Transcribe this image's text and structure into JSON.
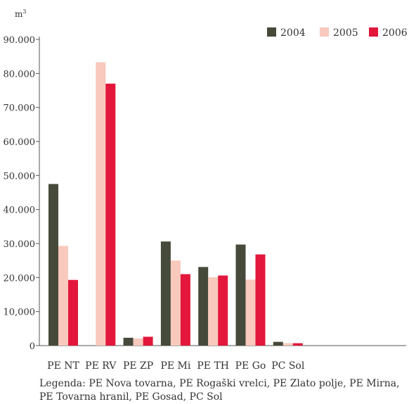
{
  "chart_data": {
    "type": "bar",
    "ylabel": "m",
    "ylabel_superscript": "3",
    "categories": [
      "PE NT",
      "PE RV",
      "PE ZP",
      "PE Mi",
      "PE TH",
      "PE Go",
      "PC Sol"
    ],
    "series": [
      {
        "name": "2004",
        "color": "#454a3a",
        "values": [
          47500,
          0,
          2300,
          30600,
          23100,
          29700,
          1100
        ]
      },
      {
        "name": "2005",
        "color": "#f8c9bc",
        "values": [
          29300,
          83300,
          2100,
          25000,
          20100,
          19400,
          700
        ]
      },
      {
        "name": "2006",
        "color": "#e3173b",
        "values": [
          19300,
          77000,
          2600,
          21000,
          20600,
          26800,
          700
        ]
      }
    ],
    "ylim": [
      0,
      90000
    ],
    "yticks": [
      {
        "value": 0,
        "label": "0"
      },
      {
        "value": 10000,
        "label": "10,000"
      },
      {
        "value": 20000,
        "label": "20.000"
      },
      {
        "value": 30000,
        "label": "30.000"
      },
      {
        "value": 40000,
        "label": "40.000"
      },
      {
        "value": 50000,
        "label": "50.000"
      },
      {
        "value": 60000,
        "label": "60.000"
      },
      {
        "value": 70000,
        "label": "70.000"
      },
      {
        "value": 80000,
        "label": "80.000"
      },
      {
        "value": 90000,
        "label": "90.000"
      }
    ],
    "legend_position": "top-right",
    "grid": false
  },
  "caption": {
    "line1": "Legenda: PE Nova tovarna, PE Rogaški vrelci, PE Zlato polje, PE Mirna,",
    "line2": "PE Tovarna hranil, PE Gosad, PC Sol"
  }
}
